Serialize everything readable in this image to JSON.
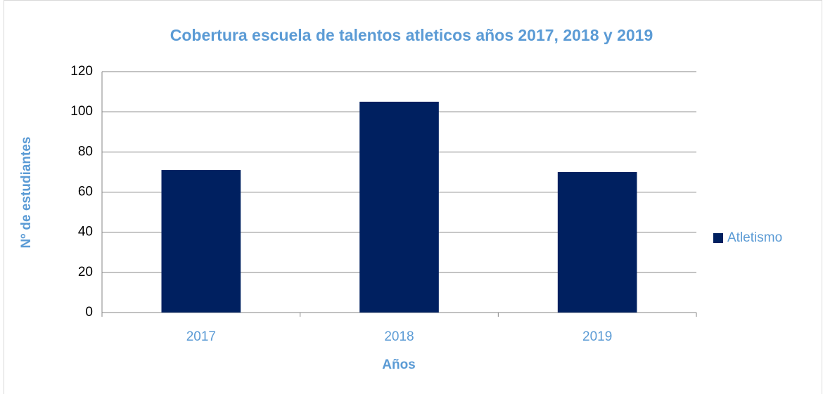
{
  "chart_data": {
    "type": "bar",
    "title": "Cobertura escuela de talentos atleticos años 2017, 2018 y 2019",
    "x_label": "Años",
    "y_label": "Nº de estudiantes",
    "categories": [
      "2017",
      "2018",
      "2019"
    ],
    "series": [
      {
        "name": "Atletismo",
        "color": "#002060",
        "values": [
          71,
          105,
          70
        ]
      }
    ],
    "ylim": [
      0,
      120
    ],
    "yticks": [
      0,
      20,
      40,
      60,
      80,
      100,
      120
    ],
    "grid": true,
    "legend": "right"
  }
}
